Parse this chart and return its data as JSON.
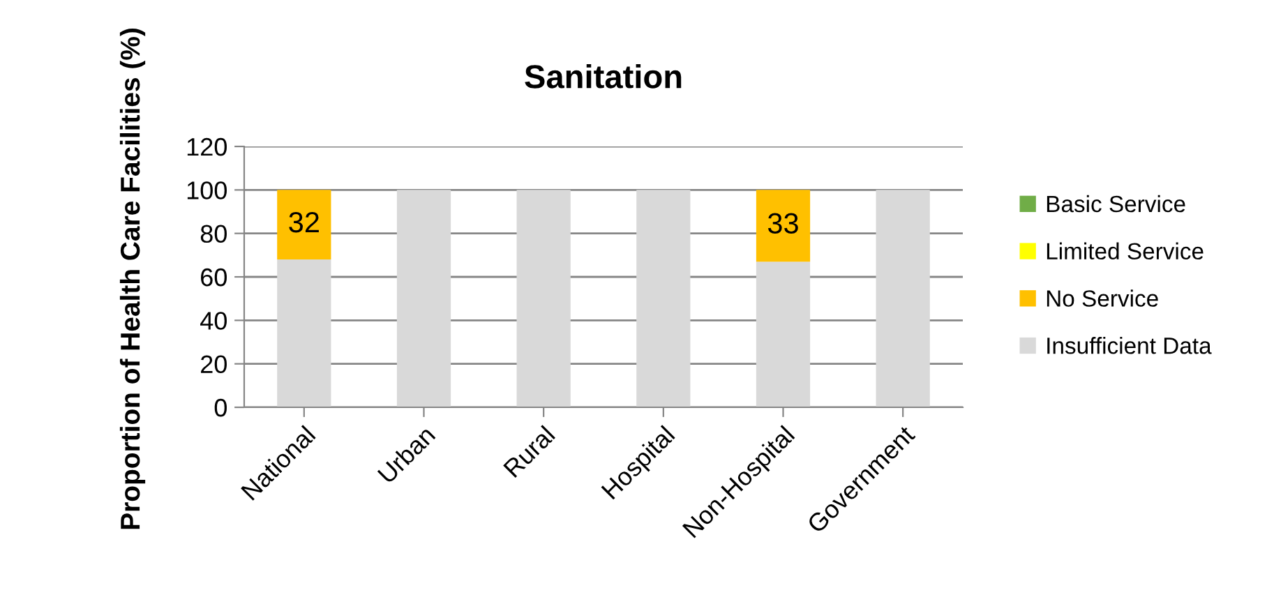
{
  "chart_data": {
    "type": "bar",
    "title": "Sanitation",
    "ylabel": "Proportion of Health Care Facilities (%)",
    "categories": [
      "National",
      "Urban",
      "Rural",
      "Hospital",
      "Non-Hospital",
      "Government"
    ],
    "stacked": true,
    "series": [
      {
        "name": "Insufficient Data",
        "color": "#d9d9d9",
        "values": [
          68,
          100,
          100,
          100,
          67,
          100
        ]
      },
      {
        "name": "No Service",
        "color": "#ffc000",
        "values": [
          32,
          0,
          0,
          0,
          33,
          0
        ],
        "value_labels": [
          "32",
          null,
          null,
          null,
          "33",
          null
        ]
      },
      {
        "name": "Limited Service",
        "color": "#ffff00",
        "values": [
          0,
          0,
          0,
          0,
          0,
          0
        ]
      },
      {
        "name": "Basic Service",
        "color": "#70ad47",
        "values": [
          0,
          0,
          0,
          0,
          0,
          0
        ]
      }
    ],
    "ylim": [
      0,
      120
    ],
    "yticks": [
      0,
      20,
      40,
      60,
      80,
      100,
      120
    ],
    "grid": "y",
    "legend": "right"
  }
}
